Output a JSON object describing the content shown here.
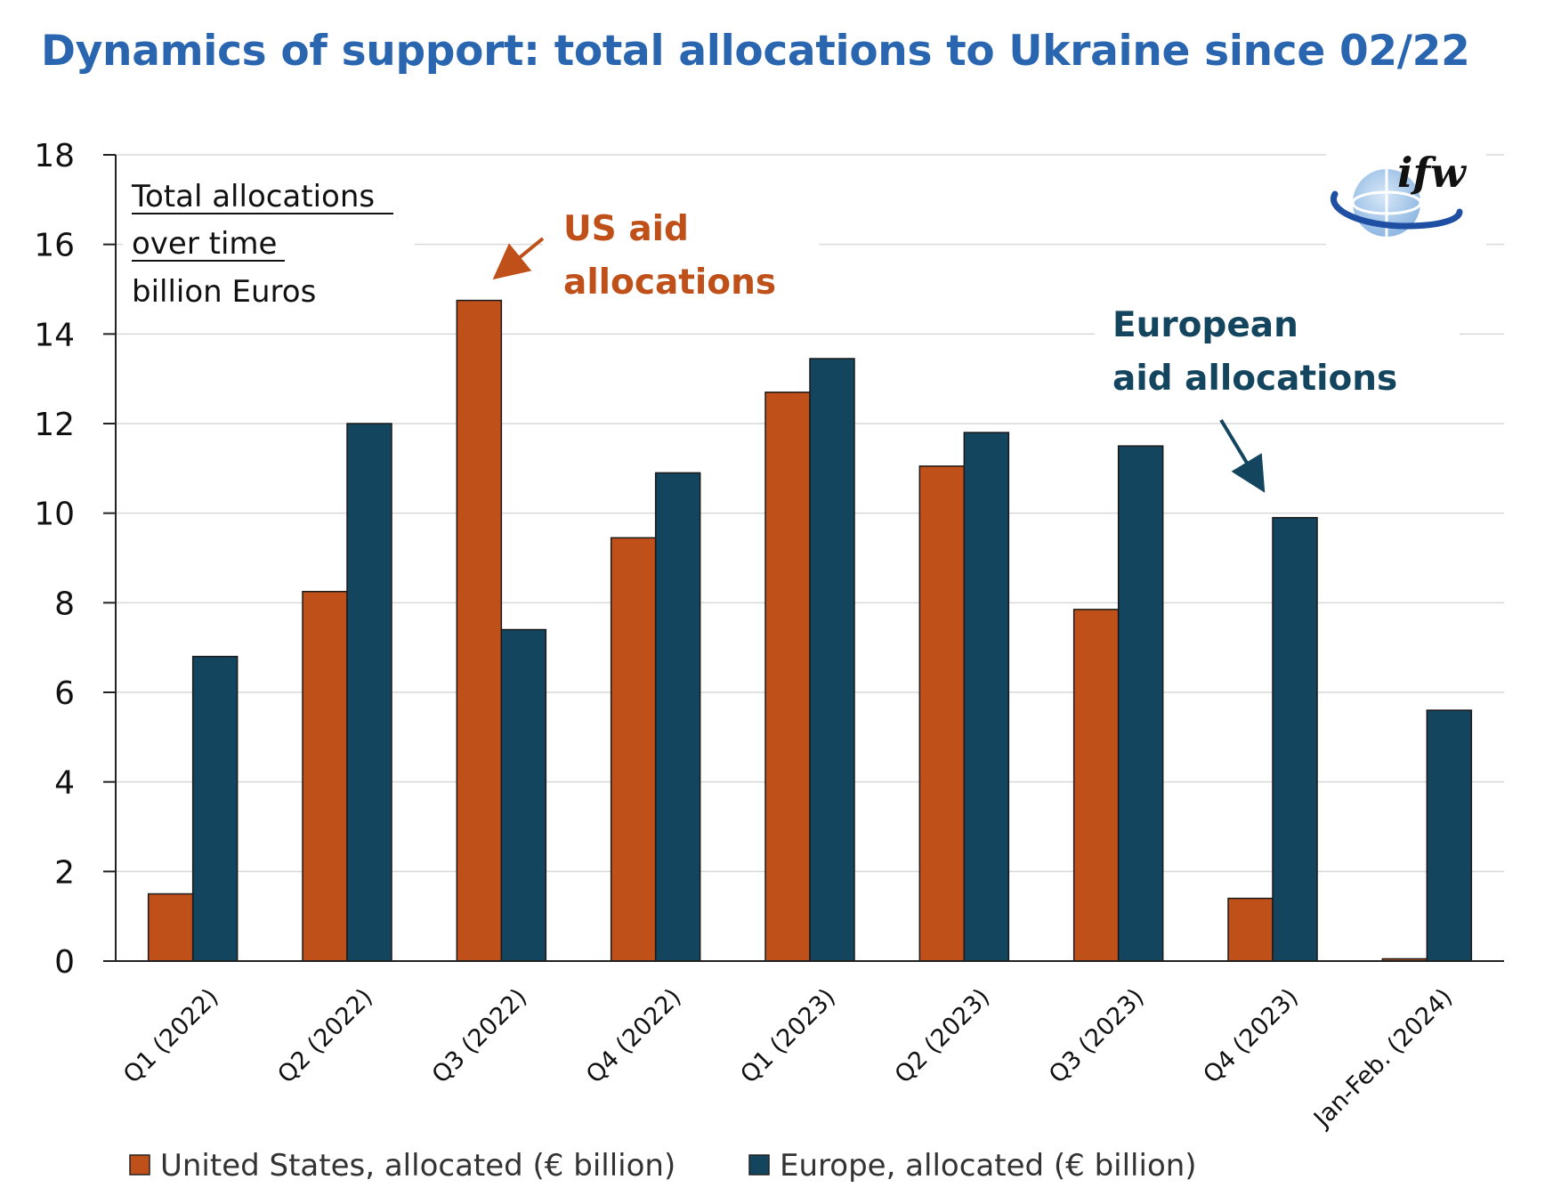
{
  "header": {
    "title": "Dynamics of support: total allocations to Ukraine since 02/22"
  },
  "chart_data": {
    "type": "bar",
    "title": "Dynamics of support: total allocations to Ukraine since 02/22",
    "subtitle_lines": [
      "Total allocations",
      "over time",
      "billion Euros"
    ],
    "ylim": [
      0,
      18
    ],
    "yticks": [
      0,
      2,
      4,
      6,
      8,
      10,
      12,
      14,
      16,
      18
    ],
    "grid": true,
    "categories": [
      "Q1 (2022)",
      "Q2 (2022)",
      "Q3 (2022)",
      "Q4 (2022)",
      "Q1 (2023)",
      "Q2 (2023)",
      "Q3 (2023)",
      "Q4 (2023)",
      "Jan-Feb. (2024)"
    ],
    "series": [
      {
        "name": "United States, allocated (€ billion)",
        "color": "#c0501a",
        "values": [
          1.5,
          8.25,
          14.75,
          9.45,
          12.7,
          11.05,
          7.85,
          1.4,
          0.05
        ]
      },
      {
        "name": "Europe, allocated (€ billion)",
        "color": "#13455f",
        "values": [
          6.8,
          12.0,
          7.4,
          10.9,
          13.45,
          11.8,
          11.5,
          9.9,
          5.6
        ]
      }
    ],
    "legend_position": "bottom",
    "annotations": [
      {
        "series": "us",
        "lines": [
          "US aid",
          "allocations"
        ],
        "color": "#c0501a"
      },
      {
        "series": "eu",
        "lines": [
          "European",
          "aid allocations"
        ],
        "color": "#13455f"
      }
    ]
  },
  "logo": {
    "text": "ifw",
    "icon": "globe-icon"
  }
}
